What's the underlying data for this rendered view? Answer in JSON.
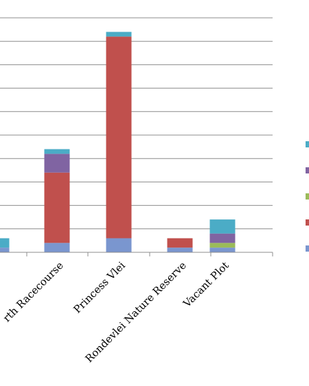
{
  "chart_data": {
    "type": "bar",
    "stacked": true,
    "categories": [
      "",
      "rth Racecourse",
      "Princess Vlei",
      "Rondevlei Nature Reserve",
      "Vacant Plot"
    ],
    "series": [
      {
        "color": "#7a96cf",
        "values": [
          0.2,
          0.4,
          0.6,
          0.2,
          0.2
        ]
      },
      {
        "color": "#c0504d",
        "values": [
          0.0,
          3.0,
          8.6,
          0.4,
          0.0
        ]
      },
      {
        "color": "#9bbb59",
        "values": [
          0.0,
          0.0,
          0.0,
          0.0,
          0.2
        ]
      },
      {
        "color": "#8064a2",
        "values": [
          0.0,
          0.8,
          0.0,
          0.0,
          0.4
        ]
      },
      {
        "color": "#4bacc6",
        "values": [
          0.4,
          0.2,
          0.2,
          0.0,
          0.6
        ]
      }
    ],
    "ylim": [
      0,
      10
    ],
    "grid": true,
    "legend_position": "right"
  }
}
